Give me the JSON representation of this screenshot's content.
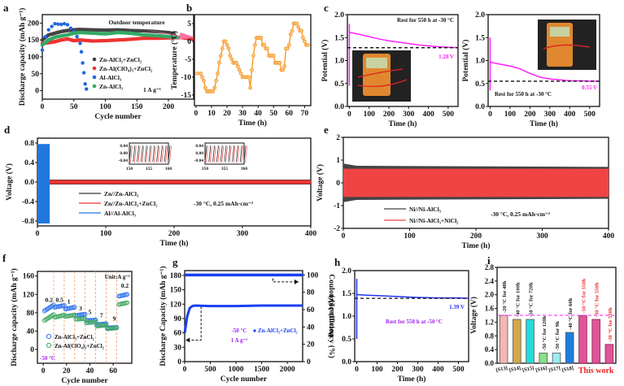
{
  "chart_data": [
    {
      "panel": "a",
      "type": "scatter",
      "xlabel": "Cycle number",
      "ylabel": "Discharge capacity (mAh g⁻¹)",
      "xlim": [
        0,
        240
      ],
      "ylim": [
        -25,
        225
      ],
      "xticks": [
        0,
        50,
        100,
        150,
        200
      ],
      "yticks": [
        0,
        50,
        100,
        150,
        200
      ],
      "annotation": "Outdoor temperature",
      "rate_label": "1 A g⁻¹",
      "series": [
        {
          "name": "Zn-AlCl₃+ZnCl₂",
          "color": "#444444",
          "x": [
            0,
            10,
            20,
            30,
            40,
            50,
            60,
            80,
            100,
            120,
            140,
            160,
            180,
            200,
            210
          ],
          "y": [
            150,
            165,
            170,
            175,
            178,
            180,
            181,
            180,
            179,
            180,
            178,
            177,
            175,
            172,
            168
          ]
        },
        {
          "name": "Zn-Al(ClO₄)₃+ZnCl₂",
          "color": "#ee3333",
          "x": [
            0,
            10,
            20,
            30,
            40,
            50,
            60,
            80,
            100,
            120,
            140,
            160,
            180,
            200,
            220,
            240
          ],
          "y": [
            140,
            142,
            145,
            150,
            153,
            148,
            150,
            147,
            148,
            150,
            152,
            155,
            155,
            156,
            157,
            152
          ]
        },
        {
          "name": "Al-AlCl₃",
          "color": "#2266dd",
          "x": [
            0,
            5,
            10,
            15,
            20,
            25,
            30,
            35,
            40,
            45,
            50,
            55,
            60,
            62,
            64,
            66,
            68,
            70
          ],
          "y": [
            120,
            160,
            180,
            190,
            198,
            197,
            196,
            198,
            195,
            185,
            175,
            160,
            140,
            115,
            82,
            53,
            20,
            5
          ]
        },
        {
          "name": "Zn-AlCl₃",
          "color": "#33aa66",
          "x": [
            0,
            10,
            20,
            30,
            40,
            50,
            60,
            80,
            100,
            120,
            140,
            160,
            180,
            200,
            220
          ],
          "y": [
            135,
            150,
            158,
            162,
            165,
            170,
            172,
            170,
            168,
            172,
            170,
            165,
            163,
            160,
            156
          ]
        }
      ]
    },
    {
      "panel": "b",
      "type": "line",
      "xlabel": "Time (h)",
      "ylabel": "Temperature (°C)",
      "xlim": [
        -1,
        74
      ],
      "ylim": [
        -18,
        7.5
      ],
      "xticks": [
        0,
        10,
        20,
        30,
        40,
        50,
        60,
        70
      ],
      "yticks": [
        5,
        0,
        -5,
        -10,
        -15
      ],
      "color": "#f59a23",
      "x": [
        1,
        3,
        4,
        5,
        6,
        7,
        8,
        9,
        10,
        11,
        12,
        13,
        14,
        15,
        16,
        17,
        18,
        19,
        20,
        21,
        22,
        23,
        24,
        25,
        26,
        27,
        28,
        29,
        30,
        31,
        32,
        33,
        34,
        35,
        36,
        37,
        38,
        39,
        40,
        41,
        42,
        43,
        44,
        45,
        46,
        47,
        48,
        49,
        50,
        51,
        52,
        53,
        54,
        55,
        56,
        57,
        58,
        59,
        60,
        61,
        62,
        63,
        64,
        65,
        66,
        67,
        68,
        69,
        70,
        71,
        72
      ],
      "y": [
        -9,
        -9,
        -10,
        -11,
        -13,
        -14,
        -14,
        -14,
        -14,
        -14,
        -13,
        -11,
        -9,
        -6,
        -4,
        -2,
        0,
        0,
        -1,
        -2,
        -4,
        -5,
        -6,
        -6,
        -6,
        -7,
        -8,
        -9,
        -10,
        -10,
        -10,
        -10,
        -10,
        -13,
        -8,
        -4,
        -1,
        1,
        1,
        1,
        1,
        -1,
        -1,
        -2,
        -2,
        -4,
        -4,
        -4,
        -4,
        -6,
        -6,
        -6,
        -6,
        -8,
        -8,
        -7,
        -2,
        -2,
        -1,
        2,
        3,
        5,
        5,
        5,
        4,
        3,
        3,
        1,
        0,
        -1,
        -1
      ]
    },
    {
      "panel": "c-left",
      "type": "line",
      "xlabel": "Time (h)",
      "ylabel": "Potential (V)",
      "xlim": [
        -10,
        550
      ],
      "ylim": [
        0,
        2.0
      ],
      "xticks": [
        0,
        100,
        200,
        300,
        400,
        500
      ],
      "yticks": [
        0.0,
        0.5,
        1.0,
        1.5,
        2.0
      ],
      "color": "#ff22ff",
      "note": "Rest for 550 h at -30 °C",
      "final_label": "1.28 V",
      "dashed_level": 1.28,
      "x": [
        0,
        5,
        50,
        100,
        150,
        200,
        250,
        300,
        350,
        400,
        450,
        500,
        550
      ],
      "y": [
        1.62,
        1.61,
        1.57,
        1.52,
        1.47,
        1.43,
        1.4,
        1.37,
        1.34,
        1.32,
        1.3,
        1.29,
        1.28
      ],
      "spike": [
        0.45,
        1.8
      ]
    },
    {
      "panel": "c-right",
      "type": "line",
      "xlabel": "Time (h)",
      "ylabel": "Potential (V)",
      "xlim": [
        -10,
        550
      ],
      "ylim": [
        0,
        2.0
      ],
      "xticks": [
        0,
        100,
        200,
        300,
        400,
        500
      ],
      "yticks": [
        0.0,
        0.5,
        1.0,
        1.5,
        2.0
      ],
      "color": "#ff22ff",
      "note": "Rest for 550 h at -30 °C",
      "final_label": "0.55 V",
      "dashed_level": 0.55,
      "x": [
        0,
        5,
        50,
        100,
        150,
        200,
        250,
        300,
        350,
        400,
        450,
        500,
        550
      ],
      "y": [
        0.99,
        0.96,
        0.92,
        0.88,
        0.82,
        0.72,
        0.64,
        0.6,
        0.58,
        0.56,
        0.56,
        0.55,
        0.55
      ],
      "spike": [
        0.35,
        1.5
      ]
    },
    {
      "panel": "d",
      "type": "line",
      "xlabel": "Time (h)",
      "ylabel": "Voltage (V)",
      "xlim": [
        0,
        400
      ],
      "ylim": [
        -0.9,
        0.9
      ],
      "xticks": [
        0,
        100,
        200,
        300,
        400
      ],
      "yticks": [
        -0.8,
        -0.4,
        0.0,
        0.4,
        0.8
      ],
      "condition": "-30 °C, 0.25 mAh·cm⁻²",
      "series": [
        {
          "name": "Zn//Zn-AlCl₃",
          "color": "#333333",
          "t_range": [
            18,
            400
          ],
          "amplitude": 0.05
        },
        {
          "name": "Zn//Zn-AlCl₃+ZnCl₂",
          "color": "#ee3333",
          "t_range": [
            18,
            400
          ],
          "amplitude": 0.04
        },
        {
          "name": "Al//Al-AlCl₃",
          "color": "#2277dd",
          "t_range": [
            0,
            18
          ],
          "amplitude": 0.78
        }
      ],
      "insets": [
        {
          "xlim": [
            150,
            160
          ],
          "xticks": [
            150,
            155,
            160
          ],
          "yticks": [
            "0.04",
            "0.00",
            "-0.04"
          ]
        },
        {
          "xlim": [
            350,
            360
          ],
          "xticks": [
            350,
            355,
            360
          ],
          "yticks": [
            "0.04",
            "0.00",
            "-0.04"
          ]
        }
      ]
    },
    {
      "panel": "e",
      "type": "line",
      "xlabel": "Time (h)",
      "ylabel": "Voltage (V)",
      "xlim": [
        0,
        400
      ],
      "ylim": [
        -2,
        2
      ],
      "xticks": [
        0,
        100,
        200,
        300,
        400
      ],
      "yticks": [
        2,
        1,
        0,
        -1,
        -2
      ],
      "condition": "-30 °C, 0.25 mAh·cm⁻²",
      "series": [
        {
          "name": "Ni//Ni-AlCl₃",
          "color": "#444444",
          "amplitude": 0.72
        },
        {
          "name": "Ni//Ni-AlCl₃+NiCl₂",
          "color": "#ee4444",
          "amplitude": 0.62
        }
      ]
    },
    {
      "panel": "f",
      "type": "scatter",
      "xlabel": "Cycle number",
      "ylabel": "Discharge capacity (mAh g⁻¹)",
      "xlim": [
        -5,
        76
      ],
      "ylim": [
        -30,
        170
      ],
      "xticks": [
        0,
        20,
        40,
        60
      ],
      "yticks": [
        0,
        40,
        80,
        120,
        160
      ],
      "unit": "Unit:A g⁻¹",
      "temp": "-50 °C",
      "rate_labels": [
        "0.2",
        "0.5",
        "1",
        "3",
        "5",
        "7",
        "9",
        "0.2"
      ],
      "dividers": [
        9,
        18,
        27,
        36,
        45,
        54,
        63
      ],
      "series": [
        {
          "name": "Zn-AlCl₃+ZnCl₂",
          "color": "#3377ee",
          "segments": [
            [
              84,
              97
            ],
            [
              92,
              96
            ],
            [
              88,
              92
            ],
            [
              74,
              77
            ],
            [
              63,
              64
            ],
            [
              54,
              56
            ],
            [
              47,
              48
            ],
            [
              116,
              120
            ]
          ]
        },
        {
          "name": "Zn-Al(ClO₄)₃+ZnCl₂",
          "color": "#44aa66",
          "segments": [
            [
              63,
              76
            ],
            [
              70,
              75
            ],
            [
              72,
              75
            ],
            [
              66,
              67
            ],
            [
              58,
              60
            ],
            [
              51,
              53
            ],
            [
              45,
              47
            ],
            [
              98,
              102
            ]
          ]
        }
      ]
    },
    {
      "panel": "g",
      "type": "scatter",
      "xlabel": "Cycle number",
      "ylabel": "Discharge Capacity (mAh g⁻¹)",
      "y2label": "Coulombic efficiency (%)",
      "xlim": [
        0,
        2300
      ],
      "ylim": [
        0,
        190
      ],
      "y2lim": [
        0,
        105
      ],
      "xticks": [
        0,
        500,
        1000,
        1500,
        2000
      ],
      "yticks": [
        0,
        30,
        60,
        90,
        120,
        150,
        180
      ],
      "y2ticks": [
        0,
        20,
        40,
        60,
        80,
        100
      ],
      "temp": "-50 °C",
      "rate": "1 A g⁻¹",
      "legend": "Zn-AlCl₃+ZnCl₂",
      "color": "#1a3ff0",
      "capacity": {
        "x": [
          0,
          50,
          100,
          150,
          200,
          500,
          1000,
          1500,
          2000,
          2300
        ],
        "y": [
          60,
          95,
          112,
          116,
          117,
          116,
          116,
          117,
          117,
          117
        ]
      },
      "efficiency": {
        "x": [
          0,
          2300
        ],
        "y": [
          100,
          100
        ]
      }
    },
    {
      "panel": "h",
      "type": "line",
      "xlabel": "Time (h)",
      "ylabel": "Potential (V)",
      "xlim": [
        -10,
        550
      ],
      "ylim": [
        0,
        2.0
      ],
      "xticks": [
        0,
        100,
        200,
        300,
        400,
        500
      ],
      "yticks": [
        0.0,
        0.5,
        1.0,
        1.5,
        2.0
      ],
      "color": "#2233ee",
      "note": "Rest for 550 h at -50 °C",
      "final_label": "1.39 V",
      "dashed_level": 1.39,
      "x": [
        0,
        5,
        50,
        100,
        200,
        300,
        400,
        500,
        550
      ],
      "y": [
        1.48,
        1.47,
        1.46,
        1.45,
        1.43,
        1.41,
        1.4,
        1.4,
        1.39
      ],
      "spike": [
        0.5,
        1.82
      ]
    },
    {
      "panel": "i",
      "type": "bar",
      "xlabel": "",
      "ylabel": "Voltage (V)",
      "ylim": [
        0,
        2.8
      ],
      "yticks": [
        0.0,
        0.4,
        0.8,
        1.2,
        1.6,
        2.0,
        2.4,
        2.8
      ],
      "categories": [
        "[S13]",
        "[S14]",
        "[S15]",
        "[S16]",
        "[S17]",
        "[S18]",
        "This work",
        "This work",
        "This work"
      ],
      "values": [
        1.4,
        1.28,
        1.28,
        0.3,
        0.3,
        0.9,
        1.39,
        1.28,
        0.55
      ],
      "bar_labels": [
        "-20 °C for 48h",
        "-40 °C for 100h",
        "-50 °C for 720h",
        "-50 °C for 120h",
        "-50 °C for 9h",
        "-40 °C for 60h",
        "-50 °C for 550h",
        "-30 °C for 550h",
        "-30 °C for 550h"
      ],
      "colors": [
        "#f4b6b6",
        "#d4a84a",
        "#22dddd",
        "#88e088",
        "#99eeee",
        "#1a7fe0",
        "#e0559a",
        "#e0559a",
        "#e0559a"
      ],
      "reference_line": 1.4,
      "highlight": "This work"
    }
  ],
  "panel_letters": [
    "a",
    "b",
    "c",
    "d",
    "e",
    "f",
    "g",
    "h",
    "i"
  ]
}
